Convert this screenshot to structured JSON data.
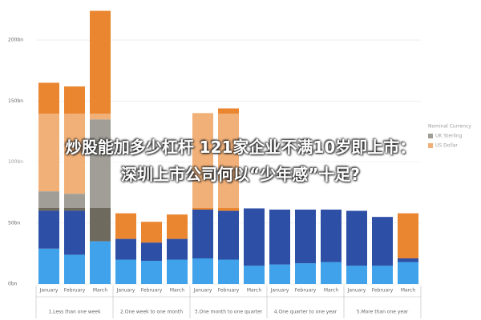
{
  "chart_data": {
    "type": "stacked_bar",
    "categories": [
      "January",
      "February",
      "March",
      "January",
      "February",
      "March",
      "January",
      "February",
      "March",
      "January",
      "February",
      "March",
      "January",
      "February",
      "March"
    ],
    "groups": [
      "1.Less than one week",
      "2.One week to one month",
      "3.One month to one quarter",
      "4.One quarter to one year",
      "5.More than one year"
    ],
    "series": [
      {
        "color": "#3fa2ea",
        "values": [
          29,
          24,
          35,
          20,
          19,
          20,
          21,
          20,
          15,
          16,
          17,
          18,
          15,
          15,
          18
        ]
      },
      {
        "color": "#2d4fa6",
        "values": [
          31,
          36,
          0,
          17,
          15,
          17,
          40,
          40,
          47,
          45,
          44,
          43,
          45,
          40,
          3
        ]
      },
      {
        "name": "UK Sterling",
        "color": "#6e6a5e",
        "values": [
          16,
          14,
          100,
          0,
          0,
          0,
          0,
          0,
          0,
          0,
          0,
          0,
          0,
          0,
          0
        ]
      },
      {
        "name": "US Dollar",
        "color": "#ea8630",
        "values": [
          89,
          88,
          89,
          21,
          17,
          20,
          79,
          84,
          0,
          0,
          0,
          0,
          0,
          0,
          37
        ]
      }
    ],
    "legend_title": "Nominal Currency",
    "ylim": [
      0,
      225
    ],
    "yticks": [
      {
        "value": 0,
        "label": "0bn"
      },
      {
        "value": 50,
        "label": "50bn"
      },
      {
        "value": 100,
        "label": "100bn"
      },
      {
        "value": 150,
        "label": "150bn"
      },
      {
        "value": 200,
        "label": "200bn"
      }
    ],
    "grid": true
  },
  "overlay_title": [
    "炒股能加多少杠杆 121家企业不满10岁即上市：",
    "深圳上市公司何以“少年感”十足?"
  ]
}
